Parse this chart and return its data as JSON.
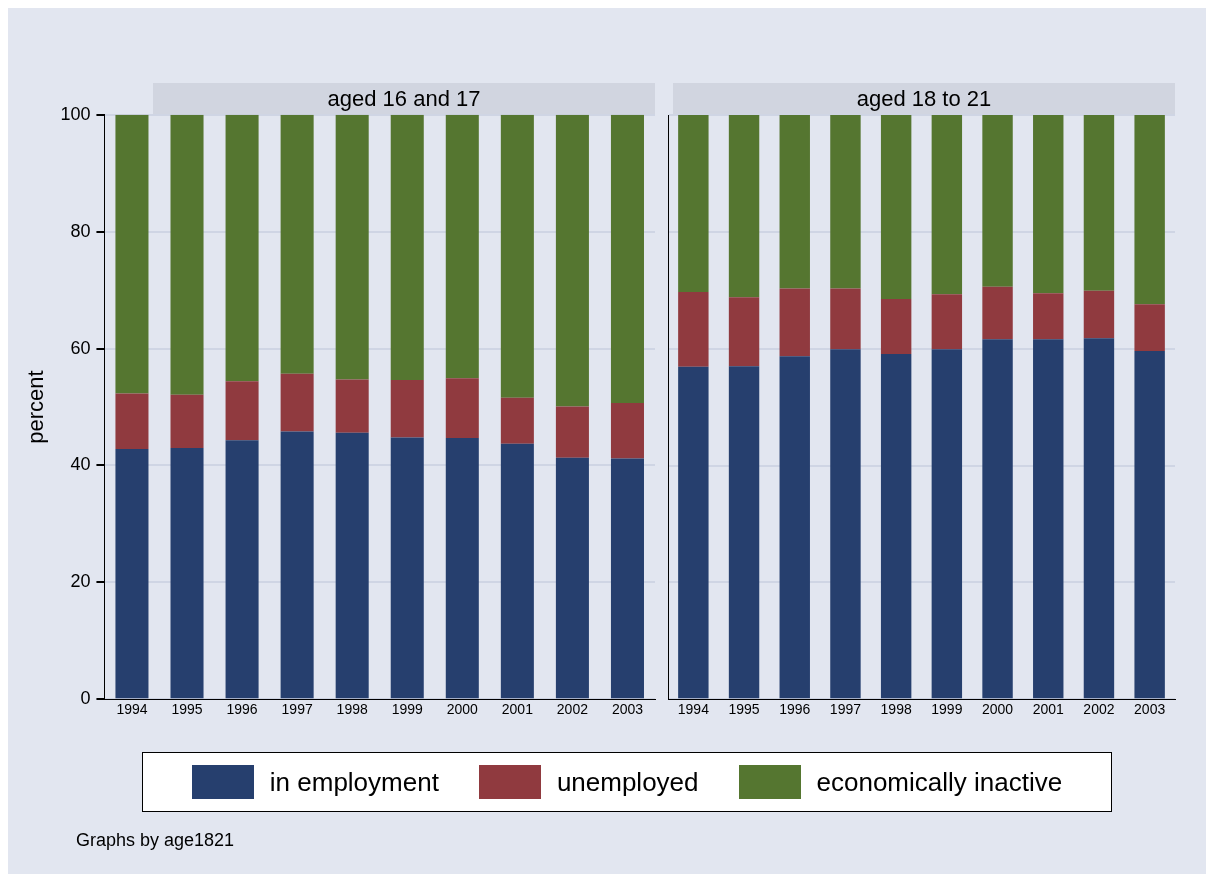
{
  "chart_data": [
    {
      "type": "bar",
      "stacked": true,
      "title": "aged 16 and 17",
      "ylabel": "percent",
      "categories": [
        "1994",
        "1995",
        "1996",
        "1997",
        "1998",
        "1999",
        "2000",
        "2001",
        "2002",
        "2003"
      ],
      "ylim": [
        0,
        100
      ],
      "yticks": [
        0,
        20,
        40,
        60,
        80,
        100
      ],
      "grid": "y",
      "legend": "bottom",
      "annotations": [
        "Graphs by age1821"
      ],
      "series": [
        {
          "name": "in employment",
          "color": "#263f6e",
          "values": [
            42.8,
            43.0,
            44.3,
            45.8,
            45.6,
            44.8,
            44.7,
            43.7,
            41.3,
            41.2
          ]
        },
        {
          "name": "unemployed",
          "color": "#903a3f",
          "values": [
            9.5,
            9.1,
            10.1,
            9.9,
            9.1,
            9.8,
            10.2,
            7.9,
            8.8,
            9.5
          ]
        },
        {
          "name": "economically inactive",
          "color": "#557630",
          "values": [
            47.7,
            47.9,
            45.6,
            44.3,
            45.3,
            45.4,
            45.1,
            48.4,
            49.9,
            49.3
          ]
        }
      ]
    },
    {
      "type": "bar",
      "stacked": true,
      "title": "aged 18 to 21",
      "categories": [
        "1994",
        "1995",
        "1996",
        "1997",
        "1998",
        "1999",
        "2000",
        "2001",
        "2002",
        "2003"
      ],
      "ylim": [
        0,
        100
      ],
      "yticks": [
        0,
        20,
        40,
        60,
        80,
        100
      ],
      "grid": "y",
      "tick_labels": "x",
      "series": [
        {
          "color": "#263f6e",
          "values": [
            56.9,
            57.0,
            58.7,
            59.9,
            59.1,
            59.9,
            61.6,
            61.6,
            61.8,
            59.6
          ]
        },
        {
          "color": "#903a3f",
          "values": [
            12.8,
            11.8,
            11.6,
            10.4,
            9.4,
            9.4,
            9.0,
            7.9,
            8.1,
            8.0
          ]
        },
        {
          "color": "#557630",
          "values": [
            30.3,
            31.2,
            29.7,
            29.7,
            31.5,
            30.7,
            29.4,
            30.5,
            30.1,
            32.4
          ]
        }
      ]
    }
  ]
}
